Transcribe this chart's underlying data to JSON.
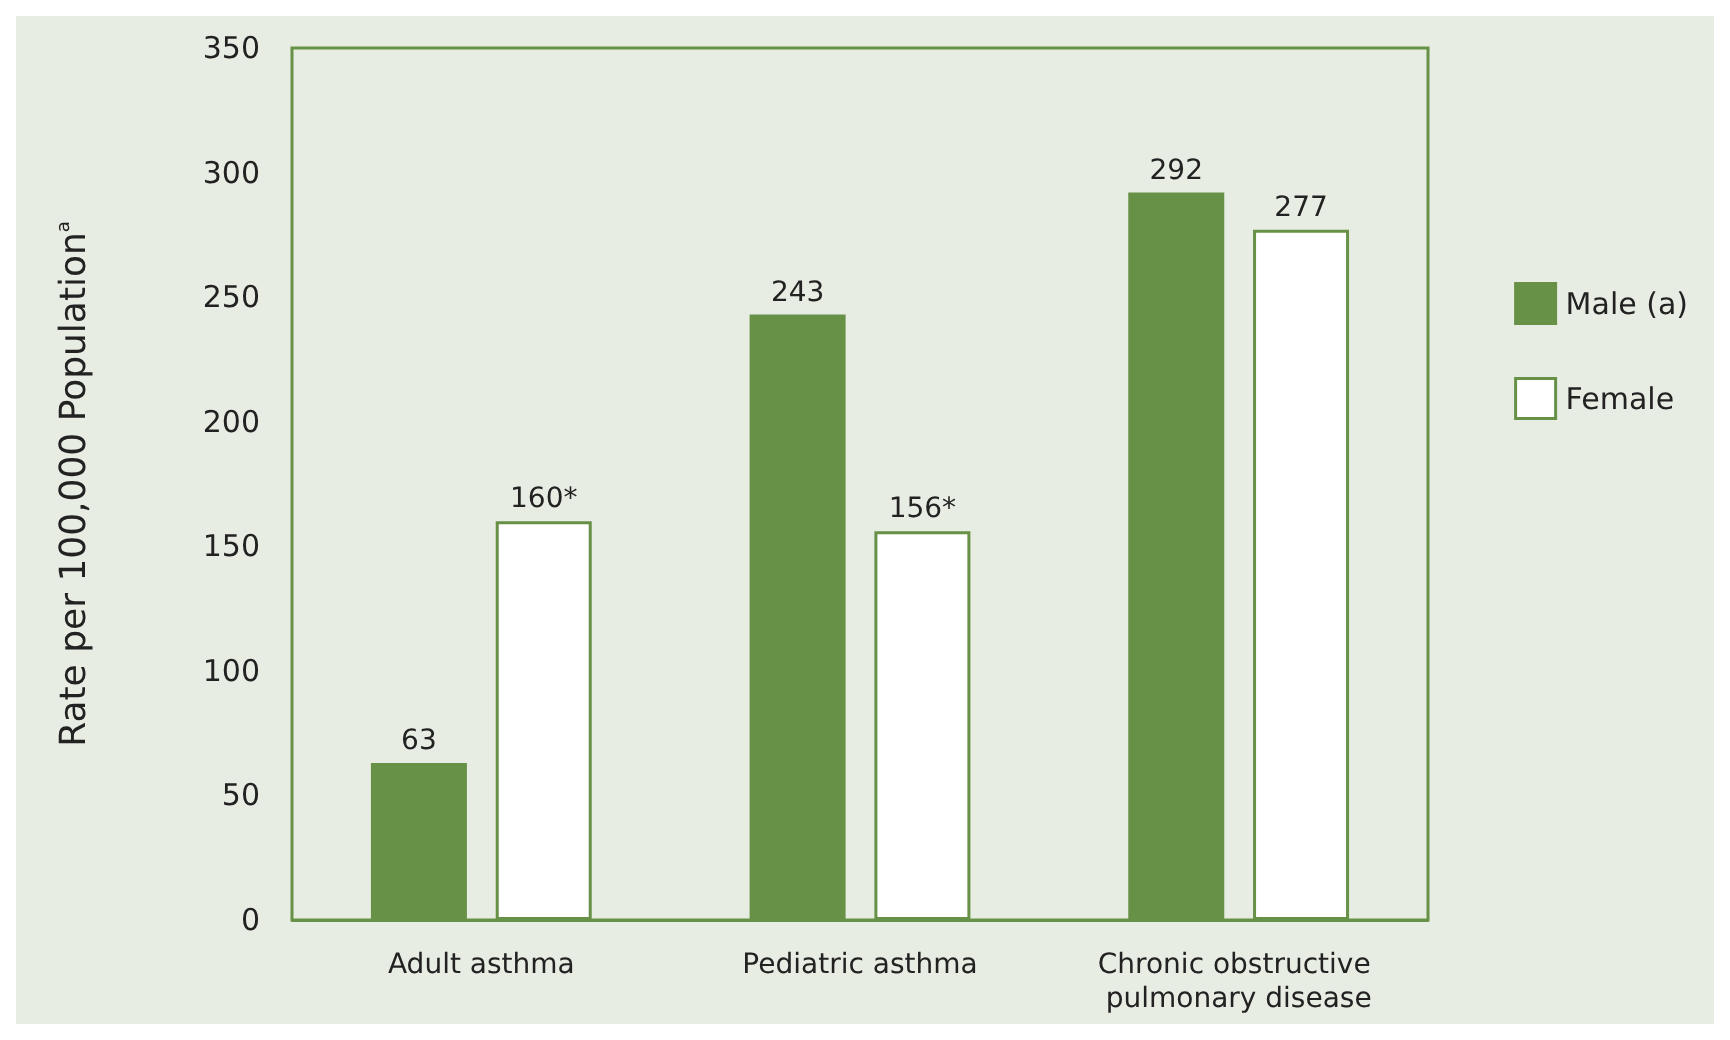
{
  "chart_data": {
    "type": "bar",
    "ylabel": "Rate per 100,000 Population$^{a}$",
    "categories": [
      "Adult asthma",
      "Pediatric asthma",
      "Chronic obstructive pulmonary disease"
    ],
    "series": [
      {
        "name": "Male (a)",
        "color": "#679146",
        "values": [
          63,
          243,
          292
        ],
        "value_labels": [
          "63",
          "243",
          "292"
        ]
      },
      {
        "name": "Female",
        "color": "#ffffff",
        "values": [
          160,
          156,
          277
        ],
        "value_labels": [
          "160*",
          "156*",
          "277"
        ]
      }
    ],
    "ylim": [
      0,
      350
    ],
    "yticks": [
      0,
      50,
      100,
      150,
      200,
      250,
      300,
      350
    ],
    "grid": false,
    "legend": "right"
  }
}
